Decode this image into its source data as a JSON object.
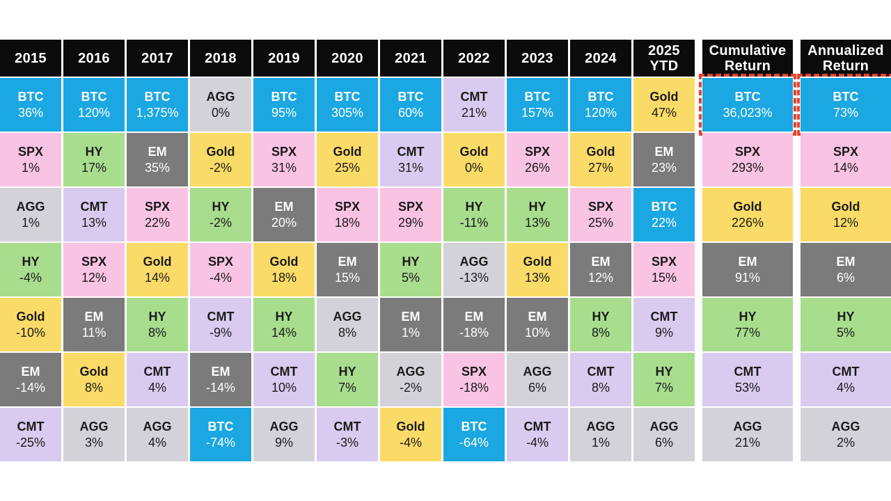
{
  "highlight_color": "#e8432b",
  "chart_data": {
    "type": "table",
    "description": "Ranked annual asset class returns quilt, best (top) to worst (bottom) per column",
    "legend_position": "none",
    "grid": "white gaps between tiles",
    "assets": {
      "BTC": {
        "bg": "#1ba7e1",
        "fg": "#ffffff"
      },
      "SPX": {
        "bg": "#f9c3e4",
        "fg": "#1a1a1a"
      },
      "AGG": {
        "bg": "#d4d2d9",
        "fg": "#1a1a1a"
      },
      "HY": {
        "bg": "#a8dd8e",
        "fg": "#1a1a1a"
      },
      "Gold": {
        "bg": "#fbdb67",
        "fg": "#1a1a1a"
      },
      "EM": {
        "bg": "#7c7b7b",
        "fg": "#ffffff"
      },
      "CMT": {
        "bg": "#d9cbef",
        "fg": "#1a1a1a"
      }
    },
    "columns": [
      {
        "id": "2015",
        "label": "2015",
        "cells": [
          {
            "asset": "BTC",
            "value": "36%"
          },
          {
            "asset": "SPX",
            "value": "1%"
          },
          {
            "asset": "AGG",
            "value": "1%"
          },
          {
            "asset": "HY",
            "value": "-4%"
          },
          {
            "asset": "Gold",
            "value": "-10%"
          },
          {
            "asset": "EM",
            "value": "-14%"
          },
          {
            "asset": "CMT",
            "value": "-25%"
          }
        ]
      },
      {
        "id": "2016",
        "label": "2016",
        "cells": [
          {
            "asset": "BTC",
            "value": "120%"
          },
          {
            "asset": "HY",
            "value": "17%"
          },
          {
            "asset": "CMT",
            "value": "13%"
          },
          {
            "asset": "SPX",
            "value": "12%"
          },
          {
            "asset": "EM",
            "value": "11%"
          },
          {
            "asset": "Gold",
            "value": "8%"
          },
          {
            "asset": "AGG",
            "value": "3%"
          }
        ]
      },
      {
        "id": "2017",
        "label": "2017",
        "cells": [
          {
            "asset": "BTC",
            "value": "1,375%"
          },
          {
            "asset": "EM",
            "value": "35%"
          },
          {
            "asset": "SPX",
            "value": "22%"
          },
          {
            "asset": "Gold",
            "value": "14%"
          },
          {
            "asset": "HY",
            "value": "8%"
          },
          {
            "asset": "CMT",
            "value": "4%"
          },
          {
            "asset": "AGG",
            "value": "4%"
          }
        ]
      },
      {
        "id": "2018",
        "label": "2018",
        "cells": [
          {
            "asset": "AGG",
            "value": "0%"
          },
          {
            "asset": "Gold",
            "value": "-2%"
          },
          {
            "asset": "HY",
            "value": "-2%"
          },
          {
            "asset": "SPX",
            "value": "-4%"
          },
          {
            "asset": "CMT",
            "value": "-9%"
          },
          {
            "asset": "EM",
            "value": "-14%"
          },
          {
            "asset": "BTC",
            "value": "-74%"
          }
        ]
      },
      {
        "id": "2019",
        "label": "2019",
        "cells": [
          {
            "asset": "BTC",
            "value": "95%"
          },
          {
            "asset": "SPX",
            "value": "31%"
          },
          {
            "asset": "EM",
            "value": "20%"
          },
          {
            "asset": "Gold",
            "value": "18%"
          },
          {
            "asset": "HY",
            "value": "14%"
          },
          {
            "asset": "CMT",
            "value": "10%"
          },
          {
            "asset": "AGG",
            "value": "9%"
          }
        ]
      },
      {
        "id": "2020",
        "label": "2020",
        "cells": [
          {
            "asset": "BTC",
            "value": "305%"
          },
          {
            "asset": "Gold",
            "value": "25%"
          },
          {
            "asset": "SPX",
            "value": "18%"
          },
          {
            "asset": "EM",
            "value": "15%"
          },
          {
            "asset": "AGG",
            "value": "8%"
          },
          {
            "asset": "HY",
            "value": "7%"
          },
          {
            "asset": "CMT",
            "value": "-3%"
          }
        ]
      },
      {
        "id": "2021",
        "label": "2021",
        "cells": [
          {
            "asset": "BTC",
            "value": "60%"
          },
          {
            "asset": "CMT",
            "value": "31%"
          },
          {
            "asset": "SPX",
            "value": "29%"
          },
          {
            "asset": "HY",
            "value": "5%"
          },
          {
            "asset": "EM",
            "value": "1%"
          },
          {
            "asset": "AGG",
            "value": "-2%"
          },
          {
            "asset": "Gold",
            "value": "-4%"
          }
        ]
      },
      {
        "id": "2022",
        "label": "2022",
        "cells": [
          {
            "asset": "CMT",
            "value": "21%"
          },
          {
            "asset": "Gold",
            "value": "0%"
          },
          {
            "asset": "HY",
            "value": "-11%"
          },
          {
            "asset": "AGG",
            "value": "-13%"
          },
          {
            "asset": "EM",
            "value": "-18%"
          },
          {
            "asset": "SPX",
            "value": "-18%"
          },
          {
            "asset": "BTC",
            "value": "-64%"
          }
        ]
      },
      {
        "id": "2023",
        "label": "2023",
        "cells": [
          {
            "asset": "BTC",
            "value": "157%"
          },
          {
            "asset": "SPX",
            "value": "26%"
          },
          {
            "asset": "HY",
            "value": "13%"
          },
          {
            "asset": "Gold",
            "value": "13%"
          },
          {
            "asset": "EM",
            "value": "10%"
          },
          {
            "asset": "AGG",
            "value": "6%"
          },
          {
            "asset": "CMT",
            "value": "-4%"
          }
        ]
      },
      {
        "id": "2024",
        "label": "2024",
        "cells": [
          {
            "asset": "BTC",
            "value": "120%"
          },
          {
            "asset": "Gold",
            "value": "27%"
          },
          {
            "asset": "SPX",
            "value": "25%"
          },
          {
            "asset": "EM",
            "value": "12%"
          },
          {
            "asset": "HY",
            "value": "8%"
          },
          {
            "asset": "CMT",
            "value": "8%"
          },
          {
            "asset": "AGG",
            "value": "1%"
          }
        ]
      },
      {
        "id": "2025_ytd",
        "label": "2025\nYTD",
        "cells": [
          {
            "asset": "Gold",
            "value": "47%"
          },
          {
            "asset": "EM",
            "value": "23%"
          },
          {
            "asset": "BTC",
            "value": "22%"
          },
          {
            "asset": "SPX",
            "value": "15%"
          },
          {
            "asset": "CMT",
            "value": "9%"
          },
          {
            "asset": "HY",
            "value": "7%"
          },
          {
            "asset": "AGG",
            "value": "6%"
          }
        ]
      },
      {
        "id": "cumulative_return",
        "label": "Cumulative\nReturn",
        "cells": [
          {
            "asset": "BTC",
            "value": "36,023%",
            "highlighted": true
          },
          {
            "asset": "SPX",
            "value": "293%"
          },
          {
            "asset": "Gold",
            "value": "226%"
          },
          {
            "asset": "EM",
            "value": "91%"
          },
          {
            "asset": "HY",
            "value": "77%"
          },
          {
            "asset": "CMT",
            "value": "53%"
          },
          {
            "asset": "AGG",
            "value": "21%"
          }
        ]
      },
      {
        "id": "annualized_return",
        "label": "Annualized\nReturn",
        "cells": [
          {
            "asset": "BTC",
            "value": "73%",
            "highlighted": true
          },
          {
            "asset": "SPX",
            "value": "14%"
          },
          {
            "asset": "Gold",
            "value": "12%"
          },
          {
            "asset": "EM",
            "value": "6%"
          },
          {
            "asset": "HY",
            "value": "5%"
          },
          {
            "asset": "CMT",
            "value": "4%"
          },
          {
            "asset": "AGG",
            "value": "2%"
          }
        ]
      }
    ]
  }
}
